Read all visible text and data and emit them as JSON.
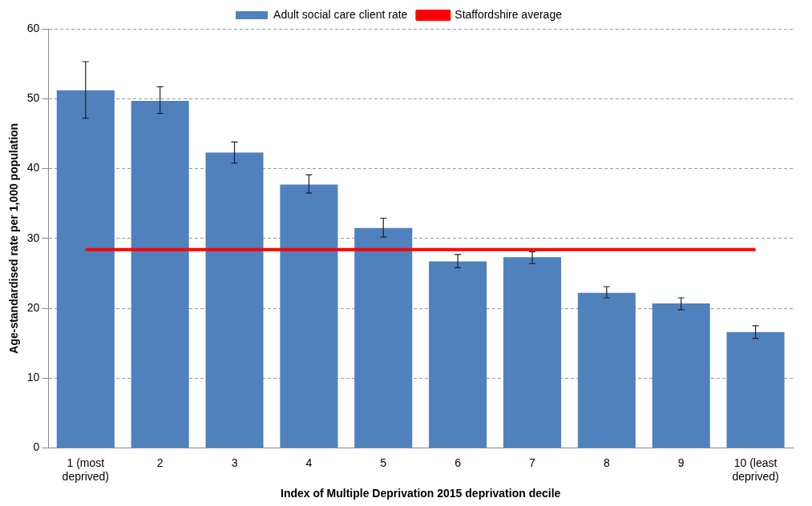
{
  "chart_data": {
    "type": "bar",
    "xlabel": "Index of Multiple Deprivation 2015 deprivation decile",
    "ylabel": "Age-standardised rate per 1,000 population",
    "categories": [
      "1 (most deprived)",
      "2",
      "3",
      "4",
      "5",
      "6",
      "7",
      "8",
      "9",
      "10 (least deprived)"
    ],
    "series": [
      {
        "name": "Adult social care client rate",
        "color": "#4f81bd",
        "values": [
          51.2,
          49.7,
          42.3,
          37.7,
          31.5,
          26.7,
          27.3,
          22.2,
          20.7,
          16.6
        ],
        "errors": [
          [
            47.2,
            55.3
          ],
          [
            47.9,
            51.7
          ],
          [
            40.8,
            43.8
          ],
          [
            36.5,
            39.1
          ],
          [
            30.2,
            32.9
          ],
          [
            25.8,
            27.7
          ],
          [
            26.4,
            28.1
          ],
          [
            21.5,
            23.1
          ],
          [
            19.8,
            21.5
          ],
          [
            15.7,
            17.5
          ]
        ]
      },
      {
        "name": "Staffordshire average",
        "type": "line",
        "color": "#ff0000",
        "values": [
          28.4,
          28.4,
          28.4,
          28.4,
          28.4,
          28.4,
          28.4,
          28.4,
          28.4,
          28.4
        ]
      }
    ],
    "ylim": [
      0,
      60
    ],
    "yticks": [
      0,
      10,
      20,
      30,
      40,
      50,
      60
    ],
    "grid": "y",
    "legend": "top",
    "marker": "none"
  }
}
